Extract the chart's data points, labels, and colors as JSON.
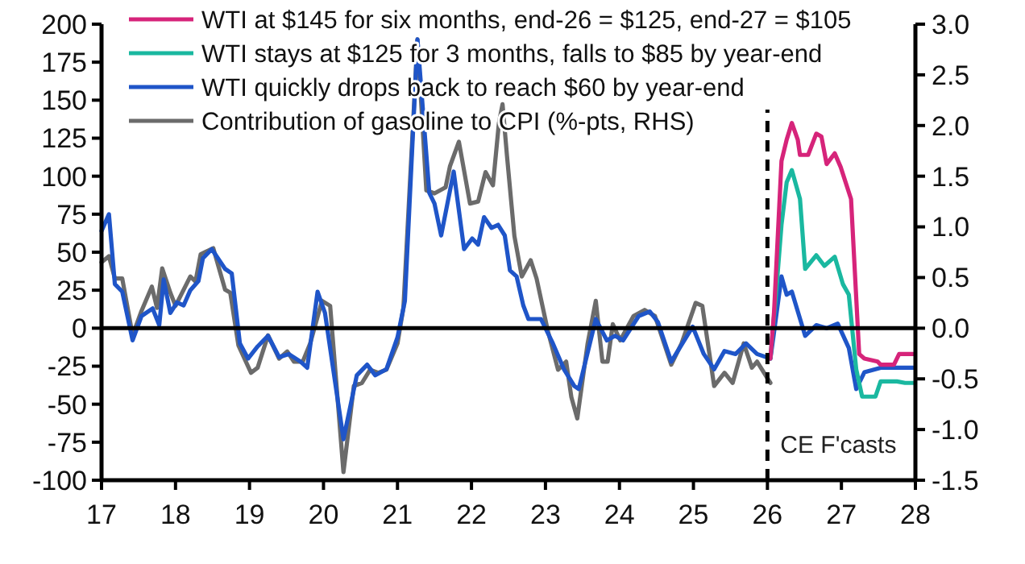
{
  "chart_data": {
    "type": "line",
    "xlim": [
      17,
      28
    ],
    "xticks": [
      17,
      18,
      19,
      20,
      21,
      22,
      23,
      24,
      25,
      26,
      27,
      28
    ],
    "ylim": [
      -100,
      200
    ],
    "yticks": [
      -100,
      -75,
      -50,
      -25,
      0,
      25,
      50,
      75,
      100,
      125,
      150,
      175,
      200
    ],
    "y2lim": [
      -1.5,
      3
    ],
    "y2ticks": [
      {
        "value": -1.5,
        "label": "-1.5"
      },
      {
        "value": -1,
        "label": "-1.0"
      },
      {
        "value": -0.5,
        "label": "-0.5"
      },
      {
        "value": 0,
        "label": "0.0"
      },
      {
        "value": 0.5,
        "label": "0.5"
      },
      {
        "value": 1,
        "label": "1.0"
      },
      {
        "value": 1.5,
        "label": "1.5"
      },
      {
        "value": 2,
        "label": "2.0"
      },
      {
        "value": 2.5,
        "label": "2.5"
      },
      {
        "value": 3,
        "label": "3.0"
      }
    ],
    "legend": "top left",
    "grid": false,
    "marker": "none",
    "line_style": "solid",
    "ref_lines": [
      {
        "axis": "y",
        "value": 0,
        "color": "#000000",
        "line_style": "solid"
      },
      {
        "axis": "x",
        "value": 26,
        "label": "CE F'casts",
        "color": "#000000",
        "line_style": "dashed"
      }
    ],
    "series": [
      {
        "name": "WTI at $145 for six months, end-26 = $125, end-27 = $105",
        "color": "#d6247a",
        "x": [
          26.04,
          26.09,
          26.19,
          26.26,
          26.33,
          26.41,
          26.44,
          26.55,
          26.66,
          26.73,
          26.8,
          26.91,
          26.99,
          27.13,
          27.24,
          27.31,
          27.49,
          27.53,
          27.71,
          27.78,
          27.97
        ],
        "values": [
          -20,
          11,
          110,
          124,
          135,
          124,
          114,
          114,
          128,
          126,
          108,
          115,
          106,
          85,
          -17,
          -20,
          -22,
          -24,
          -24,
          -17,
          -17
        ]
      },
      {
        "name": "WTI stays at $125 for 3 months, falls to $85 by year-end",
        "color": "#1ab8a0",
        "x": [
          26.04,
          26.12,
          26.19,
          26.26,
          26.33,
          26.44,
          26.51,
          26.66,
          26.77,
          26.91,
          27.02,
          27.1,
          27.2,
          27.28,
          27.46,
          27.53,
          27.75,
          27.86,
          27.97
        ],
        "values": [
          -20,
          25,
          68,
          96,
          104,
          85,
          39,
          48,
          41,
          47,
          29,
          22,
          -27,
          -45,
          -45,
          -35,
          -35,
          -36,
          -36
        ]
      },
      {
        "name": "WTI quickly drops back to reach $60 by year-end",
        "color": "#1f55c8",
        "x": [
          17.0,
          17.1,
          17.18,
          17.28,
          17.42,
          17.54,
          17.69,
          17.78,
          17.84,
          17.93,
          18.02,
          18.11,
          18.2,
          18.31,
          18.37,
          18.49,
          18.67,
          18.76,
          18.87,
          18.98,
          19.11,
          19.25,
          19.4,
          19.53,
          19.69,
          19.78,
          19.92,
          20.02,
          20.27,
          20.45,
          20.59,
          20.7,
          20.85,
          21.0,
          21.1,
          21.27,
          21.43,
          21.5,
          21.59,
          21.76,
          21.9,
          22.01,
          22.09,
          22.17,
          22.27,
          22.36,
          22.45,
          22.52,
          22.61,
          22.7,
          22.77,
          22.94,
          23.1,
          23.25,
          23.39,
          23.45,
          23.68,
          23.83,
          23.94,
          24.05,
          24.26,
          24.41,
          24.52,
          24.7,
          24.99,
          25.14,
          25.28,
          25.42,
          25.57,
          25.71,
          25.86,
          26.04,
          26.08,
          26.19,
          26.26,
          26.33,
          26.51,
          26.66,
          26.8,
          26.95,
          27.1,
          27.2,
          27.31,
          27.53,
          27.97
        ],
        "values": [
          64,
          75,
          29,
          24,
          -8,
          8,
          13,
          2,
          32,
          10,
          17,
          15,
          25,
          31,
          46,
          52,
          39,
          36,
          -10,
          -20,
          -12,
          -5,
          -19,
          -17,
          -22,
          -26,
          24,
          10,
          -73,
          -31,
          -24,
          -31,
          -27,
          -6,
          18,
          190,
          89,
          82,
          61,
          103,
          52,
          59,
          55,
          73,
          66,
          68,
          61,
          38,
          34,
          15,
          6,
          6,
          -10,
          -27,
          -38,
          -40,
          6,
          -8,
          -5,
          -8,
          8,
          11,
          4,
          -22,
          1,
          -17,
          -27,
          -15,
          -17,
          -10,
          -17,
          -20,
          -6,
          34,
          22,
          24,
          -5,
          2,
          0,
          3,
          -13,
          -40,
          -29,
          -26,
          -26
        ]
      },
      {
        "name": "Contribution of gasoline to CPI (%-pts, RHS)",
        "color": "#6b6b6b",
        "axis": "y2",
        "x": [
          17.0,
          17.1,
          17.18,
          17.28,
          17.42,
          17.54,
          17.68,
          17.75,
          17.82,
          17.93,
          18.0,
          18.2,
          18.27,
          18.34,
          18.51,
          18.67,
          18.74,
          18.85,
          19.02,
          19.11,
          19.25,
          19.4,
          19.51,
          19.6,
          19.72,
          19.82,
          19.98,
          20.09,
          20.27,
          20.41,
          20.52,
          20.63,
          20.74,
          20.85,
          21.0,
          21.08,
          21.27,
          21.39,
          21.5,
          21.65,
          21.71,
          21.83,
          21.98,
          22.09,
          22.19,
          22.29,
          22.37,
          22.42,
          22.48,
          22.58,
          22.68,
          22.8,
          22.88,
          23.03,
          23.17,
          23.28,
          23.35,
          23.43,
          23.57,
          23.68,
          23.77,
          23.84,
          23.91,
          24.01,
          24.19,
          24.34,
          24.48,
          24.7,
          24.84,
          25.03,
          25.12,
          25.28,
          25.42,
          25.53,
          25.68,
          25.79,
          25.86,
          26.04
        ],
        "values": [
          0.65,
          0.71,
          0.49,
          0.49,
          -0.07,
          0.17,
          0.41,
          0.2,
          0.59,
          0.35,
          0.22,
          0.51,
          0.46,
          0.73,
          0.79,
          0.38,
          0.35,
          -0.17,
          -0.44,
          -0.39,
          -0.07,
          -0.3,
          -0.23,
          -0.33,
          -0.33,
          -0.15,
          0.27,
          0.22,
          -1.42,
          -0.57,
          -0.54,
          -0.41,
          -0.44,
          -0.41,
          -0.15,
          0.2,
          2.85,
          1.36,
          1.33,
          1.39,
          1.6,
          1.84,
          1.23,
          1.25,
          1.54,
          1.41,
          2.02,
          2.21,
          1.7,
          0.91,
          0.51,
          0.67,
          0.49,
          -0.02,
          -0.41,
          -0.33,
          -0.68,
          -0.89,
          -0.15,
          0.27,
          -0.33,
          -0.33,
          0.04,
          -0.12,
          0.12,
          0.18,
          0.12,
          -0.36,
          -0.15,
          0.25,
          0.22,
          -0.57,
          -0.44,
          -0.54,
          -0.15,
          -0.39,
          -0.33,
          -0.54
        ]
      }
    ]
  }
}
